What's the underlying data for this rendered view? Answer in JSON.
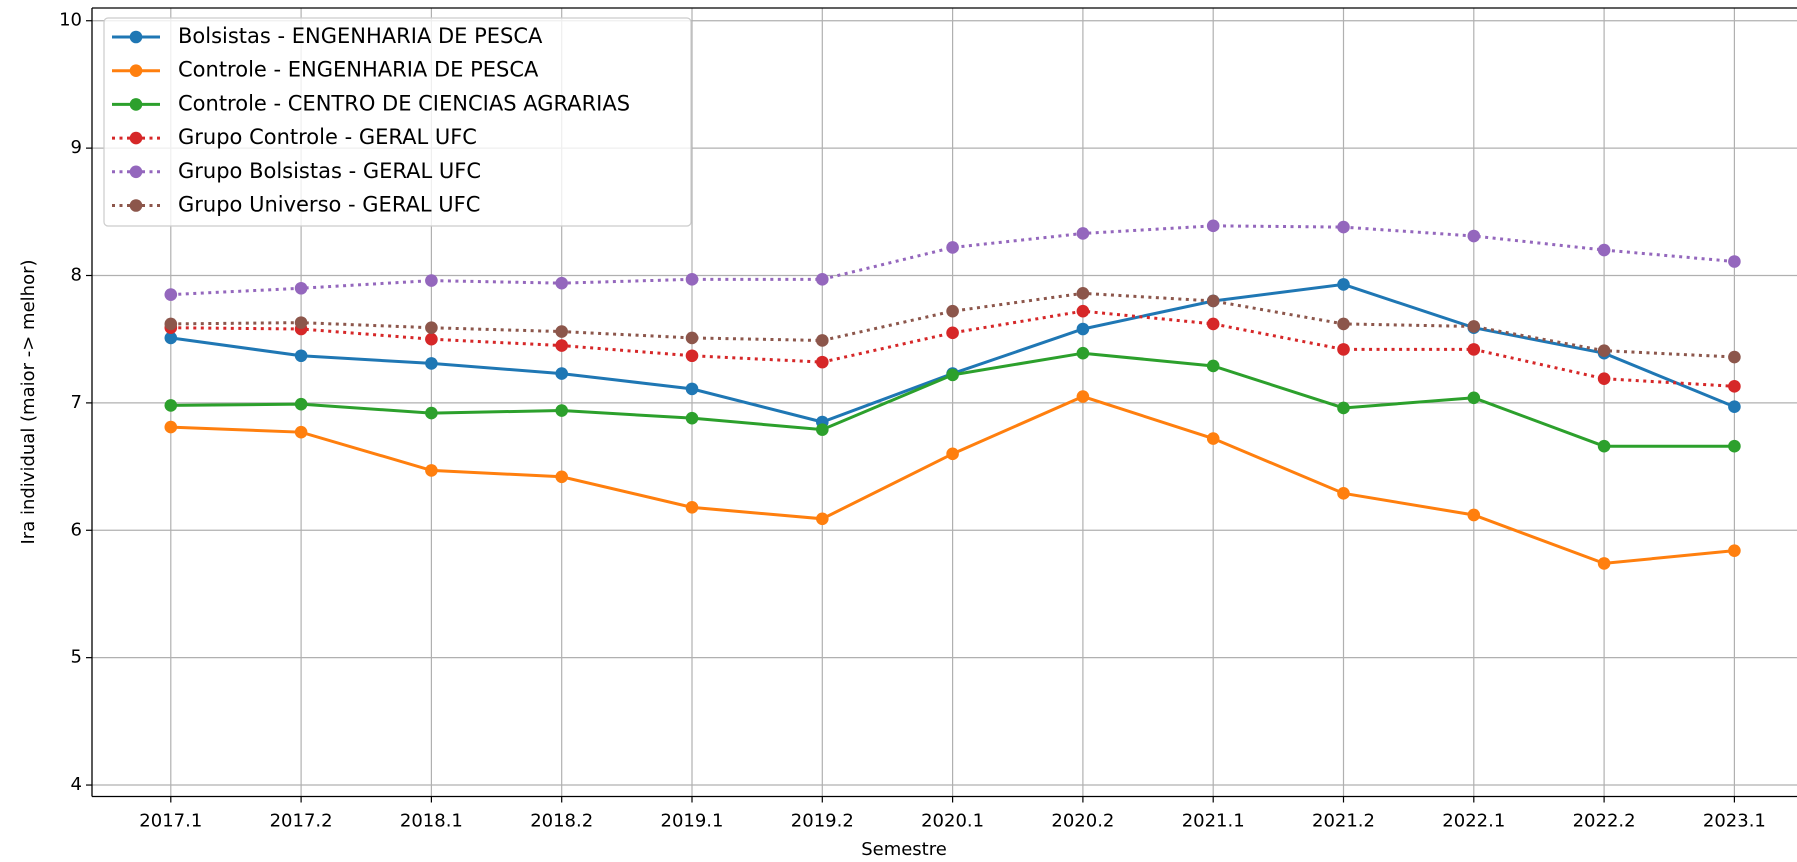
{
  "chart_data": {
    "type": "line",
    "xlabel": "Semestre",
    "ylabel": "Ira individual (maior -> melhor)",
    "categories": [
      "2017.1",
      "2017.2",
      "2018.1",
      "2018.2",
      "2019.1",
      "2019.2",
      "2020.1",
      "2020.2",
      "2021.1",
      "2021.2",
      "2022.1",
      "2022.2",
      "2023.1"
    ],
    "series": [
      {
        "name": "Bolsistas - ENGENHARIA DE PESCA",
        "color": "#1f77b4",
        "linestyle": "solid",
        "values": [
          7.51,
          7.37,
          7.31,
          7.23,
          7.11,
          6.85,
          7.23,
          7.58,
          7.8,
          7.93,
          7.59,
          7.39,
          6.97
        ]
      },
      {
        "name": "Controle - ENGENHARIA DE PESCA",
        "color": "#ff7f0e",
        "linestyle": "solid",
        "values": [
          6.81,
          6.77,
          6.47,
          6.42,
          6.18,
          6.09,
          6.6,
          7.05,
          6.72,
          6.29,
          6.12,
          5.74,
          5.84
        ]
      },
      {
        "name": "Controle - CENTRO DE CIENCIAS AGRARIAS",
        "color": "#2ca02c",
        "linestyle": "solid",
        "values": [
          6.98,
          6.99,
          6.92,
          6.94,
          6.88,
          6.79,
          7.22,
          7.39,
          7.29,
          6.96,
          7.04,
          6.66,
          6.66
        ]
      },
      {
        "name": "Grupo Controle - GERAL UFC",
        "color": "#d62728",
        "linestyle": "dotted",
        "values": [
          7.59,
          7.58,
          7.5,
          7.45,
          7.37,
          7.32,
          7.55,
          7.72,
          7.62,
          7.42,
          7.42,
          7.19,
          7.13
        ]
      },
      {
        "name": "Grupo Bolsistas - GERAL UFC",
        "color": "#9467bd",
        "linestyle": "dotted",
        "values": [
          7.85,
          7.9,
          7.96,
          7.94,
          7.97,
          7.97,
          8.22,
          8.33,
          8.39,
          8.38,
          8.31,
          8.2,
          8.11
        ]
      },
      {
        "name": "Grupo Universo - GERAL UFC",
        "color": "#8c564b",
        "linestyle": "dotted",
        "values": [
          7.62,
          7.63,
          7.59,
          7.56,
          7.51,
          7.49,
          7.72,
          7.86,
          7.8,
          7.62,
          7.6,
          7.41,
          7.36
        ]
      }
    ],
    "ylim": [
      3.91,
      10.1
    ],
    "yticks": [
      4,
      5,
      6,
      7,
      8,
      9,
      10
    ],
    "grid": true,
    "legend": "upper left"
  }
}
